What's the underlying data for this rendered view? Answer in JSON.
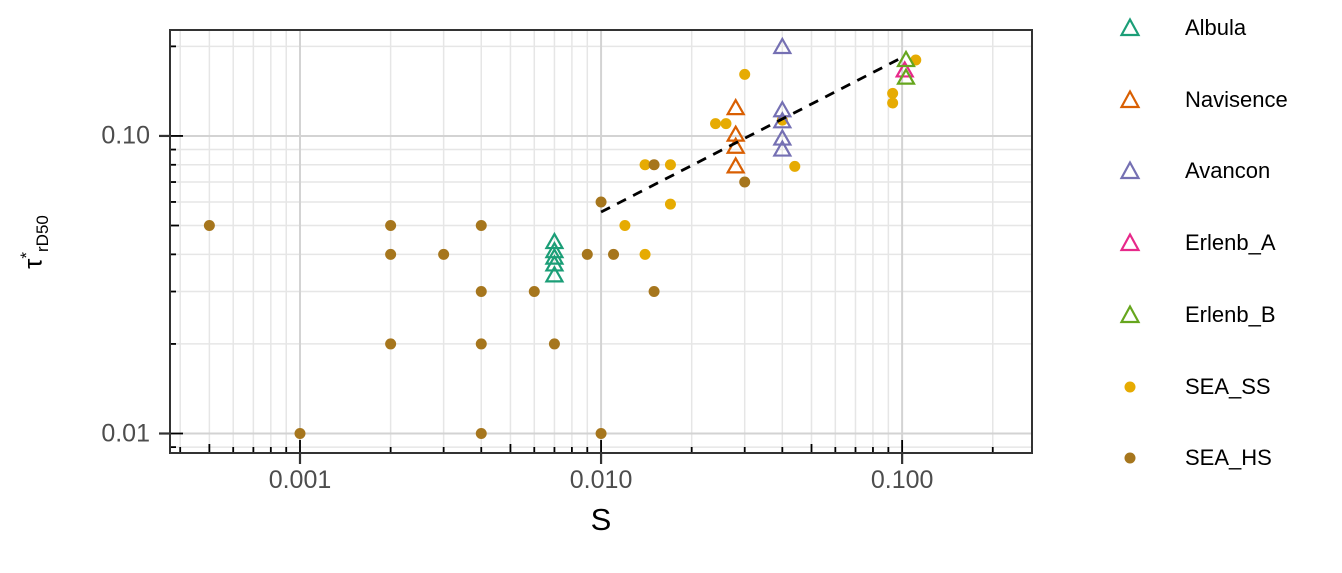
{
  "chart_data": {
    "type": "scatter",
    "title": "",
    "xlabel": "S",
    "ylabel": "τ*rD50",
    "ylabel_parts": {
      "base": "τ",
      "sup": "*",
      "sub": "rD50"
    },
    "x_scale": "log",
    "y_scale": "log",
    "x_domain": [
      0.00037,
      0.27
    ],
    "y_domain": [
      0.0086,
      0.227
    ],
    "grid": "major and log-minor gridlines, light gray on white, full dark panel border, log tick marks inside panel",
    "legend_position": "right",
    "x_ticks": [
      {
        "value": 0.001,
        "label": "0.001"
      },
      {
        "value": 0.01,
        "label": "0.010"
      },
      {
        "value": 0.1,
        "label": "0.100"
      }
    ],
    "y_ticks": [
      {
        "value": 0.1,
        "label": "0.10"
      },
      {
        "value": 0.01,
        "label": "0.01"
      }
    ],
    "trend_line": {
      "style": "dashed",
      "color": "#000000",
      "from": {
        "x": 0.01,
        "y": 0.0555
      },
      "to": {
        "x": 0.1005,
        "y": 0.184
      }
    },
    "series": [
      {
        "name": "Albula",
        "marker": "triangle-open",
        "color": "#1B9E77",
        "points": [
          [
            0.007,
            0.044
          ],
          [
            0.007,
            0.041
          ],
          [
            0.007,
            0.039
          ],
          [
            0.007,
            0.037
          ],
          [
            0.007,
            0.034
          ]
        ]
      },
      {
        "name": "Navisence",
        "marker": "triangle-open",
        "color": "#D95F02",
        "points": [
          [
            0.028,
            0.124
          ],
          [
            0.028,
            0.101
          ],
          [
            0.028,
            0.092
          ],
          [
            0.028,
            0.079
          ]
        ]
      },
      {
        "name": "Avancon",
        "marker": "triangle-open",
        "color": "#7570B3",
        "points": [
          [
            0.04,
            0.199
          ],
          [
            0.04,
            0.122
          ],
          [
            0.04,
            0.112
          ],
          [
            0.04,
            0.098
          ],
          [
            0.04,
            0.09
          ]
        ]
      },
      {
        "name": "Erlenb_A",
        "marker": "triangle-open",
        "color": "#E7298A",
        "points": [
          [
            0.102,
            0.166
          ]
        ]
      },
      {
        "name": "Erlenb_B",
        "marker": "triangle-open",
        "color": "#66A61E",
        "points": [
          [
            0.103,
            0.18
          ],
          [
            0.103,
            0.157
          ]
        ]
      },
      {
        "name": "SEA_SS",
        "marker": "circle",
        "color": "#E6AB02",
        "points": [
          [
            0.012,
            0.05
          ],
          [
            0.014,
            0.04
          ],
          [
            0.014,
            0.08
          ],
          [
            0.017,
            0.08
          ],
          [
            0.017,
            0.059
          ],
          [
            0.024,
            0.11
          ],
          [
            0.026,
            0.11
          ],
          [
            0.03,
            0.161
          ],
          [
            0.04,
            0.113
          ],
          [
            0.044,
            0.079
          ],
          [
            0.093,
            0.139
          ],
          [
            0.093,
            0.129
          ],
          [
            0.111,
            0.18
          ]
        ]
      },
      {
        "name": "SEA_HS",
        "marker": "circle",
        "color": "#A6761D",
        "points": [
          [
            0.0005,
            0.05
          ],
          [
            0.002,
            0.05
          ],
          [
            0.004,
            0.05
          ],
          [
            0.002,
            0.04
          ],
          [
            0.003,
            0.04
          ],
          [
            0.009,
            0.04
          ],
          [
            0.011,
            0.04
          ],
          [
            0.004,
            0.03
          ],
          [
            0.006,
            0.03
          ],
          [
            0.015,
            0.03
          ],
          [
            0.002,
            0.02
          ],
          [
            0.004,
            0.02
          ],
          [
            0.007,
            0.02
          ],
          [
            0.001,
            0.01
          ],
          [
            0.004,
            0.01
          ],
          [
            0.01,
            0.01
          ],
          [
            0.01,
            0.06
          ],
          [
            0.015,
            0.08
          ],
          [
            0.03,
            0.07
          ]
        ]
      }
    ]
  },
  "colors": {
    "axis_text": "#4d4d4d",
    "panel_border": "#333333",
    "grid_major": "#d3d3d3",
    "grid_minor": "#e6e6e6",
    "tick_mark": "#000000",
    "trend_line": "#000000"
  }
}
